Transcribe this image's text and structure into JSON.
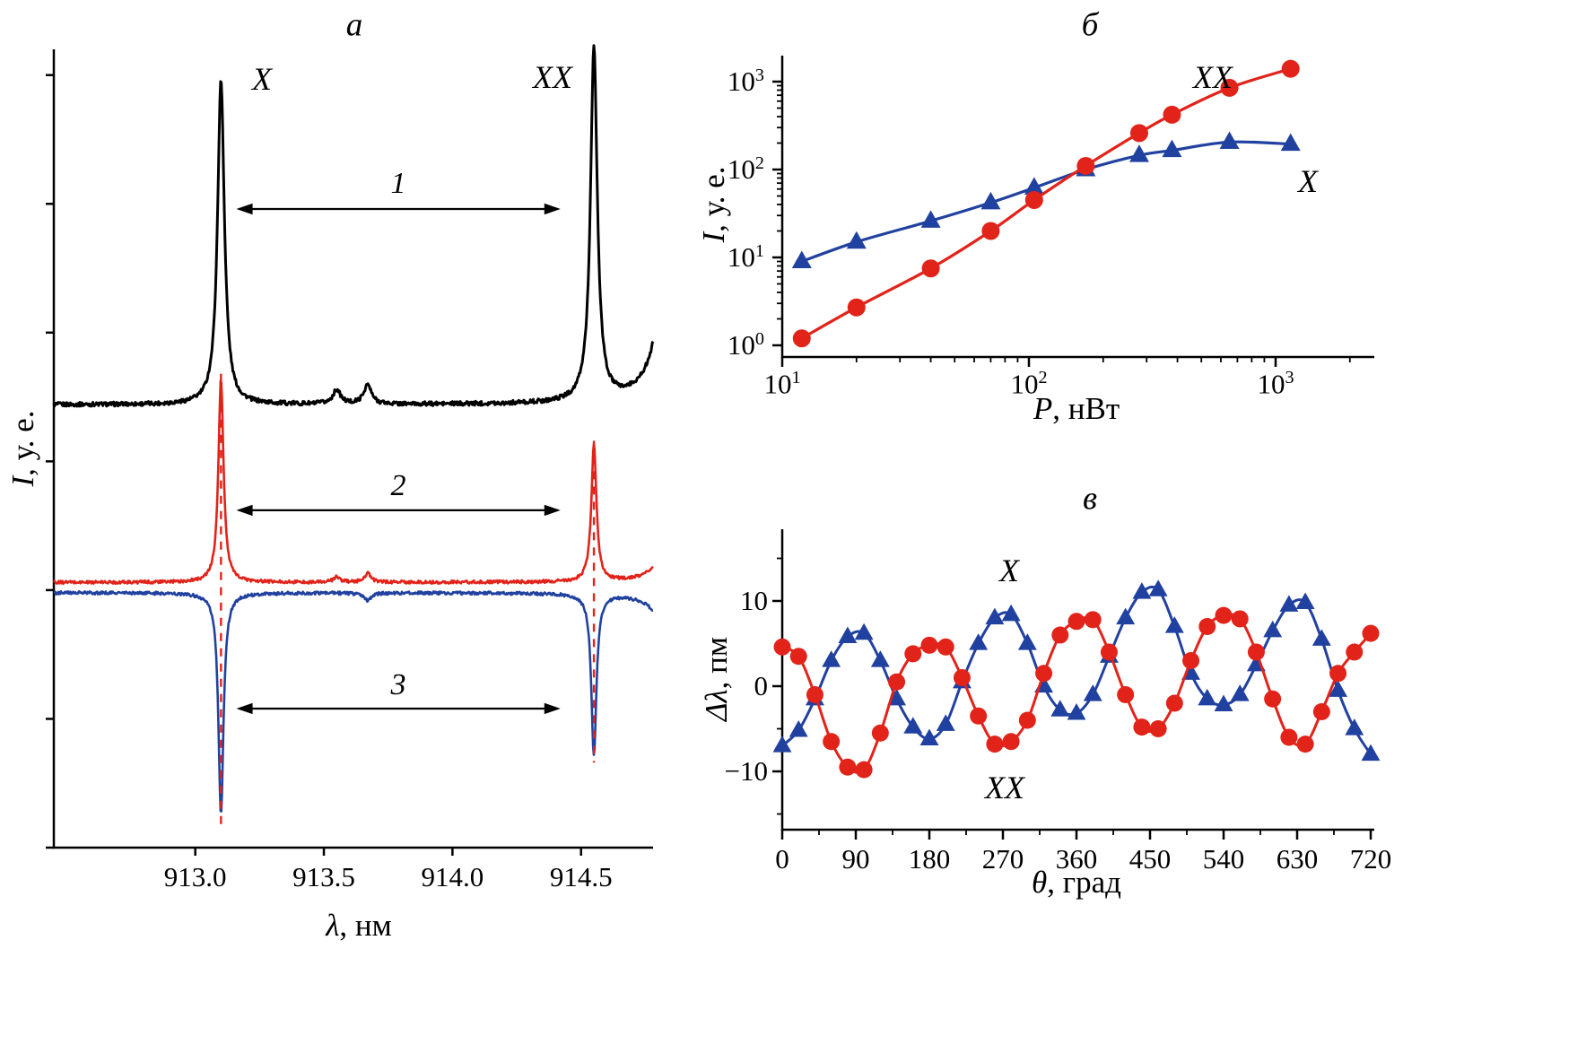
{
  "colors": {
    "red": "#e2231a",
    "blue": "#2141a0",
    "black": "#000000"
  },
  "panels": {
    "a": {
      "title": "а",
      "xlabel_var": "λ",
      "xlabel_rest": ", нм",
      "ylabel_var": "I",
      "ylabel_rest": ", у. е.",
      "peak_label_x": "X",
      "peak_label_xx": "XX"
    },
    "b": {
      "title": "б",
      "xlabel_var": "P",
      "xlabel_rest": ", нВт",
      "ylabel_var": "I",
      "ylabel_rest": ", у. е.",
      "label_xx": "XX",
      "label_x": "X"
    },
    "v": {
      "title": "в",
      "xlabel_var": "θ",
      "xlabel_rest": ", град",
      "ylabel_var": "Δλ",
      "ylabel_rest": ", пм",
      "label_x": "X",
      "label_xx": "XX"
    }
  },
  "chart_data": [
    {
      "type": "line",
      "panel": "а",
      "title": "а",
      "xlabel": "λ, нм",
      "ylabel": "I, у. е.",
      "xlim": [
        912.45,
        914.78
      ],
      "x_ticks": [
        913.0,
        913.5,
        914.0,
        914.5
      ],
      "peak_positions": {
        "X": 913.1,
        "XX": 914.55
      },
      "dashed_lines": [
        {
          "x": 913.1,
          "u1": 1.84,
          "u2": 0.08
        },
        {
          "x": 914.55,
          "u1": 1.58,
          "u2": 0.33
        }
      ],
      "arrows": [
        {
          "label": "1",
          "x1": 913.16,
          "x2": 914.42,
          "y": 2.48
        },
        {
          "label": "2",
          "x1": 913.16,
          "x2": 914.42,
          "y": 1.31
        },
        {
          "label": "3",
          "x1": 913.16,
          "x2": 914.42,
          "y": 0.54
        }
      ],
      "series": [
        {
          "name": "spectrum-1-black",
          "color": "#000000",
          "lw": 3.0,
          "baseline": 1.72,
          "noise": 0.008,
          "peaks": [
            {
              "x": 913.1,
              "h": 1.26,
              "w": 0.016,
              "label": "X"
            },
            {
              "x": 913.55,
              "h": 0.055,
              "w": 0.018
            },
            {
              "x": 913.67,
              "h": 0.075,
              "w": 0.018
            },
            {
              "x": 914.55,
              "h": 1.37,
              "w": 0.016,
              "label": "XX"
            },
            {
              "x": 914.86,
              "h": 1.2,
              "w": 0.04
            }
          ]
        },
        {
          "name": "spectrum-2-red",
          "color": "#e2231a",
          "lw": 2.6,
          "baseline": 1.03,
          "noise": 0.006,
          "peaks": [
            {
              "x": 913.1,
              "h": 0.79,
              "w": 0.012,
              "label": "X"
            },
            {
              "x": 913.55,
              "h": 0.02,
              "w": 0.015
            },
            {
              "x": 913.67,
              "h": 0.035,
              "w": 0.015
            },
            {
              "x": 914.55,
              "h": 0.53,
              "w": 0.012,
              "label": "XX"
            },
            {
              "x": 914.86,
              "h": 0.3,
              "w": 0.04
            }
          ]
        },
        {
          "name": "spectrum-3-blue",
          "color": "#2141a0",
          "lw": 2.6,
          "baseline": 0.99,
          "noise": 0.006,
          "peaks": [
            {
              "x": 913.1,
              "h": -0.86,
              "w": 0.012,
              "label": "X"
            },
            {
              "x": 913.67,
              "h": -0.03,
              "w": 0.015
            },
            {
              "x": 914.55,
              "h": -0.63,
              "w": 0.012,
              "label": "XX"
            },
            {
              "x": 914.86,
              "h": -0.35,
              "w": 0.04
            }
          ]
        }
      ]
    },
    {
      "type": "scatter",
      "panel": "б",
      "title": "б",
      "xlabel": "P, нВт",
      "ylabel": "I, у. е.",
      "xscale": "log",
      "yscale": "log",
      "xlim": [
        10,
        2500
      ],
      "ylim": [
        0.74,
        2000
      ],
      "x_ticks": [
        10,
        100,
        1000
      ],
      "y_ticks": [
        1,
        10,
        100,
        1000
      ],
      "x_tick_exponents": [
        1,
        2,
        3
      ],
      "y_tick_exponents": [
        0,
        1,
        2,
        3
      ],
      "x": [
        12,
        20,
        40,
        70,
        105,
        170,
        280,
        380,
        650,
        1150
      ],
      "series": [
        {
          "name": "X",
          "marker": "triangle",
          "color": "#2141a0",
          "values": [
            9,
            15,
            26,
            42,
            62,
            100,
            145,
            165,
            205,
            195
          ]
        },
        {
          "name": "XX",
          "marker": "circle",
          "color": "#e2231a",
          "values": [
            1.2,
            2.7,
            7.5,
            20,
            45,
            110,
            260,
            420,
            850,
            1400
          ]
        }
      ]
    },
    {
      "type": "scatter",
      "panel": "в",
      "title": "в",
      "xlabel": "θ, град",
      "ylabel": "Δλ, пм",
      "xlim": [
        0,
        720
      ],
      "ylim": [
        -17,
        18
      ],
      "x_ticks": [
        0,
        90,
        180,
        270,
        360,
        450,
        540,
        630,
        720
      ],
      "y_ticks": [
        -10,
        0,
        10
      ],
      "x": [
        0,
        20,
        40,
        60,
        80,
        100,
        120,
        140,
        160,
        180,
        200,
        220,
        240,
        260,
        280,
        300,
        320,
        340,
        360,
        380,
        400,
        420,
        440,
        460,
        480,
        500,
        520,
        540,
        560,
        580,
        600,
        620,
        640,
        660,
        680,
        700,
        720
      ],
      "series": [
        {
          "name": "X",
          "marker": "triangle",
          "color": "#2141a0",
          "values": [
            -7.0,
            -5.2,
            -1.5,
            3.0,
            5.8,
            6.2,
            3.0,
            -1.5,
            -4.8,
            -6.2,
            -4.5,
            0.5,
            5.0,
            8.0,
            8.4,
            5.0,
            0.0,
            -2.8,
            -3.2,
            -1.0,
            3.5,
            8.0,
            11.0,
            11.3,
            7.0,
            1.5,
            -1.5,
            -2.2,
            -1.0,
            2.5,
            6.5,
            9.5,
            9.8,
            5.5,
            -0.5,
            -5.0,
            -8.0
          ]
        },
        {
          "name": "XX",
          "marker": "circle",
          "color": "#e2231a",
          "values": [
            4.6,
            3.5,
            -1.0,
            -6.5,
            -9.5,
            -9.8,
            -5.5,
            0.5,
            3.8,
            4.8,
            4.6,
            1.0,
            -3.5,
            -6.8,
            -6.5,
            -4.0,
            1.5,
            6.0,
            7.6,
            7.8,
            4.0,
            -1.0,
            -4.8,
            -5.0,
            -2.0,
            3.0,
            7.0,
            8.3,
            7.9,
            4.0,
            -1.5,
            -6.0,
            -6.8,
            -3.0,
            1.5,
            4.0,
            6.2
          ]
        }
      ]
    }
  ]
}
